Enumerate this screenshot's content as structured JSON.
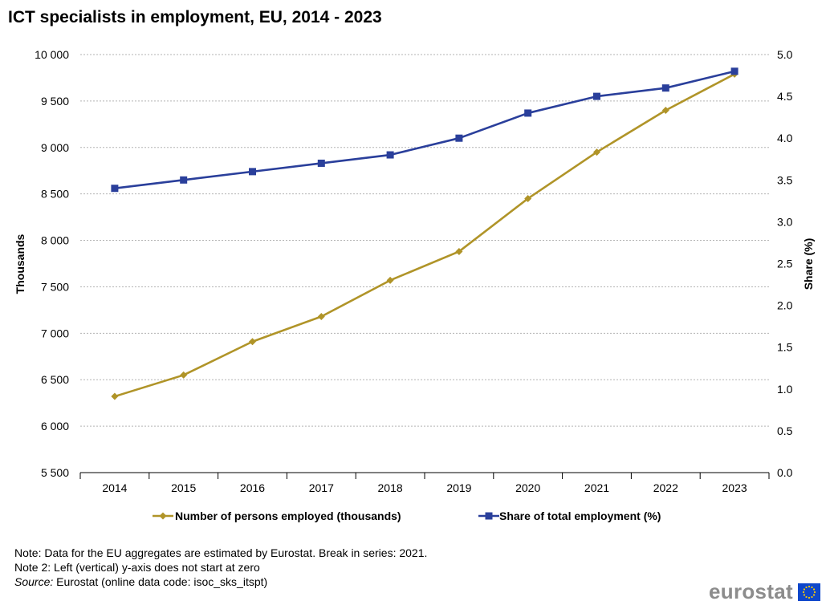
{
  "title": "ICT specialists in employment, EU, 2014 - 2023",
  "chart_data": {
    "type": "line",
    "title": "ICT specialists in employment, EU, 2014 - 2023",
    "categories": [
      "2014",
      "2015",
      "2016",
      "2017",
      "2018",
      "2019",
      "2020",
      "2021",
      "2022",
      "2023"
    ],
    "y_left": {
      "label": "Thousands",
      "range": [
        5500,
        10000
      ],
      "ticks": [
        5500,
        6000,
        6500,
        7000,
        7500,
        8000,
        8500,
        9000,
        9500,
        10000
      ],
      "tick_labels": [
        "5 500",
        "6 000",
        "6 500",
        "7 000",
        "7 500",
        "8 000",
        "8 500",
        "9 000",
        "9 500",
        "10 000"
      ]
    },
    "y_right": {
      "label": "Share (%)",
      "range": [
        0,
        5
      ],
      "ticks": [
        0,
        0.5,
        1,
        1.5,
        2,
        2.5,
        3,
        3.5,
        4,
        4.5,
        5
      ],
      "tick_labels": [
        "0.0",
        "0.5",
        "1.0",
        "1.5",
        "2.0",
        "2.5",
        "3.0",
        "3.5",
        "4.0",
        "4.5",
        "5.0"
      ]
    },
    "series": [
      {
        "name": "Number of persons employed (thousands)",
        "axis": "left",
        "marker": "diamond",
        "color": "#b09428",
        "values": [
          6320,
          6550,
          6910,
          7180,
          7570,
          7880,
          8450,
          8950,
          9400,
          9790
        ]
      },
      {
        "name": "Share of total employment (%)",
        "axis": "right",
        "marker": "square",
        "color": "#2a3f9b",
        "values": [
          3.4,
          3.5,
          3.6,
          3.7,
          3.8,
          4.0,
          4.3,
          4.5,
          4.6,
          4.8
        ]
      }
    ],
    "grid": true,
    "legend_position": "bottom"
  },
  "notes": {
    "note1": "Note: Data for the EU aggregates are estimated by Eurostat. Break in series: 2021.",
    "note2": "Note 2: Left (vertical) y-axis does not start at zero",
    "source_label": "Source:",
    "source_text": " Eurostat (online data code: isoc_sks_itspt)"
  },
  "brand": {
    "name": "eurostat",
    "flag_color": "#0e47cb",
    "star_color": "#ffcc00"
  }
}
